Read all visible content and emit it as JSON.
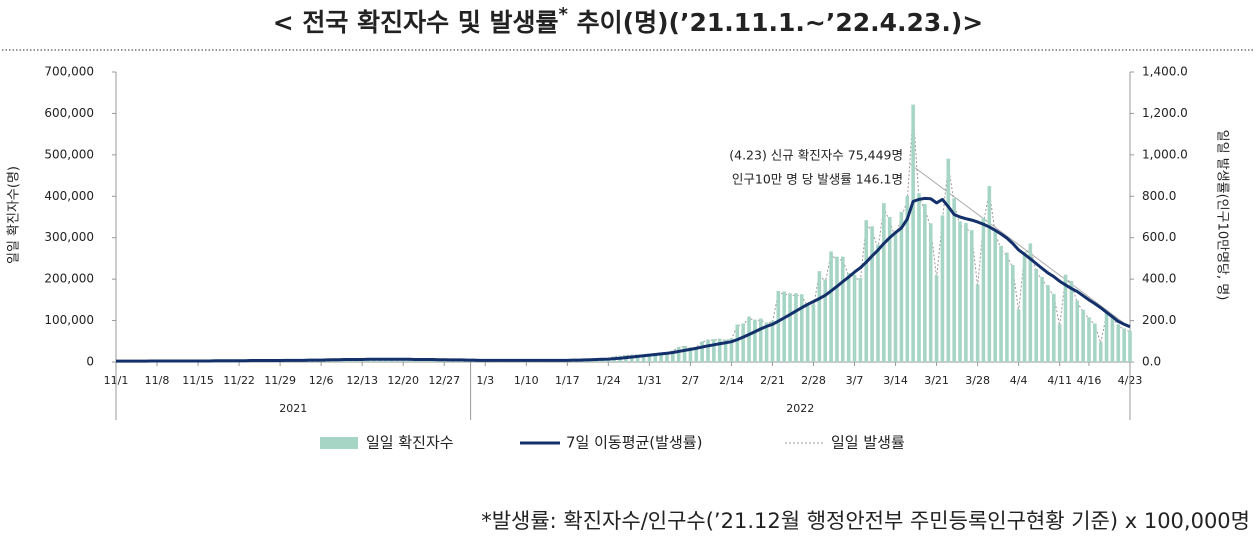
{
  "chart_data": {
    "type": "bar",
    "title": [
      "< 전국 확진자수 및 발생률",
      "*",
      " 추이(명)(’21.11.1.~’22.4.23.)>"
    ],
    "y_label": "일일 확진자수(명)",
    "y2_label": "일일 발생률(인구10만명당, 명)",
    "annotations": [
      "(4.23) 신규 확진자수 75,449명",
      "인구10만 명 당 발생률 146.1명"
    ],
    "footnote": "*발생률: 확진자수/인구수(’21.12월 행정안전부 주민등록인구현황 기준) x 100,000명",
    "years": [
      "2021",
      "2022"
    ],
    "categories": [
      "11/1",
      null,
      null,
      null,
      null,
      null,
      null,
      "11/8",
      null,
      null,
      null,
      null,
      null,
      null,
      "11/15",
      null,
      null,
      null,
      null,
      null,
      null,
      "11/22",
      null,
      null,
      null,
      null,
      null,
      null,
      "11/29",
      null,
      null,
      null,
      null,
      null,
      null,
      "12/6",
      null,
      null,
      null,
      null,
      null,
      null,
      "12/13",
      null,
      null,
      null,
      null,
      null,
      null,
      "12/20",
      null,
      null,
      null,
      null,
      null,
      null,
      "12/27",
      null,
      null,
      null,
      null,
      null,
      null,
      "1/3",
      null,
      null,
      null,
      null,
      null,
      null,
      "1/10",
      null,
      null,
      null,
      null,
      null,
      null,
      "1/17",
      null,
      null,
      null,
      null,
      null,
      null,
      "1/24",
      null,
      null,
      null,
      null,
      null,
      null,
      "1/31",
      null,
      null,
      null,
      null,
      null,
      null,
      "2/7",
      null,
      null,
      null,
      null,
      null,
      null,
      "2/14",
      null,
      null,
      null,
      null,
      null,
      null,
      "2/21",
      null,
      null,
      null,
      null,
      null,
      null,
      "2/28",
      null,
      null,
      null,
      null,
      null,
      null,
      "3/7",
      null,
      null,
      null,
      null,
      null,
      null,
      "3/14",
      null,
      null,
      null,
      null,
      null,
      null,
      "3/21",
      null,
      null,
      null,
      null,
      null,
      null,
      "3/28",
      null,
      null,
      null,
      null,
      null,
      null,
      "4/4",
      null,
      null,
      null,
      null,
      null,
      null,
      "4/11",
      null,
      null,
      null,
      null,
      "4/16",
      null,
      null,
      null,
      null,
      null,
      null,
      "4/23"
    ],
    "series": [
      {
        "name": "일일 확진자수",
        "type": "bar",
        "axis": "y",
        "color": "#a6d5c6",
        "values": [
          1686,
          2667,
          2482,
          2343,
          2247,
          2224,
          2035,
          1758,
          2425,
          2520,
          2368,
          2324,
          2419,
          2418,
          2006,
          3187,
          3292,
          3034,
          3206,
          3120,
          2827,
          2699,
          4116,
          4115,
          3938,
          3899,
          3309,
          3928,
          3032,
          5123,
          5266,
          5123,
          4944,
          5352,
          5128,
          4325,
          7175,
          7102,
          7022,
          6977,
          6689,
          5817,
          5567,
          7850,
          7622,
          7435,
          7314,
          6236,
          5318,
          5202,
          7456,
          6919,
          6233,
          5842,
          5418,
          4207,
          3865,
          5409,
          5037,
          4875,
          4416,
          3833,
          3243,
          3129,
          4443,
          4126,
          4444,
          4169,
          3999,
          3376,
          3005,
          4388,
          4542,
          4167,
          4422,
          4193,
          3859,
          4071,
          5804,
          5805,
          6603,
          6769,
          7009,
          7630,
          8571,
          13012,
          14518,
          16096,
          17542,
          17513,
          17079,
          18342,
          20270,
          22907,
          22907,
          27443,
          36362,
          38691,
          35286,
          36719,
          49567,
          54121,
          54941,
          56431,
          53926,
          57177,
          90443,
          93135,
          109831,
          102211,
          104829,
          95362,
          99573,
          171452,
          170016,
          165890,
          166209,
          163566,
          139626,
          138993,
          219241,
          198803,
          266853,
          254327,
          254327,
          214714,
          210716,
          202721,
          342446,
          327549,
          282987,
          383665,
          350190,
          309790,
          362338,
          400741,
          621328,
          407017,
          381454,
          334708,
          209169,
          353980,
          490881,
          395598,
          339514,
          335580,
          318130,
          187213,
          347554,
          424641,
          320743,
          280273,
          264171,
          234301,
          127190,
          266135,
          286294,
          224820,
          205333,
          185566,
          164481,
          90928,
          210755,
          195419,
          148443,
          125846,
          107916,
          93001,
          47743,
          118504,
          111319,
          90867,
          81058,
          75449
        ]
      },
      {
        "name": "7일 이동평균(발생률)",
        "type": "line",
        "axis": "y2",
        "color": "#13306b",
        "values": [
          4,
          4,
          4,
          4,
          4,
          4,
          5,
          5,
          5,
          5,
          5,
          5,
          5,
          5,
          5,
          5,
          5,
          6,
          6,
          6,
          6,
          6,
          6,
          7,
          7,
          7,
          7,
          7,
          7,
          8,
          8,
          8,
          8,
          9,
          9,
          9,
          10,
          11,
          11,
          12,
          12,
          12,
          12,
          13,
          13,
          13,
          13,
          13,
          13,
          13,
          13,
          12,
          12,
          12,
          12,
          11,
          11,
          10,
          10,
          10,
          9,
          9,
          8,
          8,
          8,
          8,
          8,
          8,
          8,
          8,
          8,
          8,
          8,
          8,
          8,
          8,
          8,
          8,
          9,
          9,
          10,
          11,
          12,
          13,
          14,
          16,
          18,
          21,
          24,
          27,
          30,
          33,
          36,
          39,
          42,
          46,
          51,
          56,
          61,
          66,
          72,
          78,
          83,
          88,
          93,
          98,
          108,
          120,
          133,
          146,
          160,
          172,
          182,
          197,
          213,
          229,
          246,
          262,
          278,
          292,
          306,
          322,
          343,
          365,
          388,
          410,
          434,
          455,
          482,
          512,
          540,
          572,
          600,
          625,
          647,
          690,
          775,
          785,
          790,
          788,
          768,
          785,
          750,
          712,
          700,
          692,
          685,
          676,
          665,
          652,
          636,
          618,
          598,
          572,
          541,
          520,
          498,
          475,
          452,
          430,
          412,
          390,
          372,
          355,
          340,
          320,
          300,
          282,
          262,
          240,
          218,
          196,
          182,
          170
        ]
      },
      {
        "name": "일일 발생률",
        "type": "dotted",
        "axis": "y2",
        "color": "#999999",
        "values": [
          3,
          5,
          5,
          5,
          4,
          4,
          4,
          3,
          5,
          5,
          5,
          5,
          5,
          5,
          4,
          6,
          6,
          6,
          6,
          6,
          5,
          5,
          8,
          8,
          8,
          8,
          6,
          8,
          6,
          10,
          10,
          10,
          10,
          10,
          10,
          8,
          14,
          14,
          14,
          14,
          13,
          11,
          11,
          15,
          15,
          14,
          14,
          12,
          10,
          10,
          14,
          13,
          12,
          11,
          10,
          8,
          7,
          10,
          10,
          9,
          9,
          7,
          6,
          6,
          9,
          8,
          9,
          8,
          8,
          7,
          6,
          8,
          9,
          8,
          9,
          8,
          7,
          8,
          11,
          11,
          13,
          13,
          14,
          15,
          17,
          25,
          28,
          31,
          34,
          34,
          33,
          36,
          39,
          44,
          44,
          53,
          70,
          75,
          68,
          71,
          96,
          105,
          106,
          109,
          104,
          111,
          175,
          180,
          213,
          198,
          203,
          185,
          193,
          332,
          329,
          321,
          322,
          317,
          270,
          269,
          425,
          385,
          517,
          493,
          493,
          416,
          408,
          393,
          663,
          634,
          548,
          743,
          678,
          600,
          702,
          776,
          1203,
          788,
          739,
          648,
          405,
          685,
          951,
          766,
          657,
          650,
          616,
          363,
          673,
          822,
          621,
          543,
          512,
          454,
          246,
          515,
          554,
          435,
          398,
          359,
          319,
          176,
          408,
          378,
          287,
          244,
          209,
          180,
          92,
          229,
          216,
          176,
          157,
          146.1
        ]
      }
    ],
    "ylim": [
      0,
      700000
    ],
    "yticks": [
      0,
      {
        "value": 100000,
        "label": "100,000"
      },
      {
        "value": 200000,
        "label": "200,000"
      },
      {
        "value": 300000,
        "label": "300,000"
      },
      {
        "value": 400000,
        "label": "400,000"
      },
      {
        "value": 500000,
        "label": "500,000"
      },
      {
        "value": 600000,
        "label": "600,000"
      },
      {
        "value": 700000,
        "label": "700,000"
      }
    ],
    "y2lim": [
      0,
      1400
    ],
    "y2ticks": [
      {
        "value": 0,
        "label": "0.0"
      },
      {
        "value": 200,
        "label": "200.0"
      },
      {
        "value": 400,
        "label": "400.0"
      },
      {
        "value": 600,
        "label": "600.0"
      },
      {
        "value": 800,
        "label": "800.0"
      },
      {
        "value": 1000,
        "label": "1,000.0"
      },
      {
        "value": 1200,
        "label": "1,200.0"
      },
      {
        "value": 1400,
        "label": "1,400.0"
      }
    ],
    "grid": false
  }
}
